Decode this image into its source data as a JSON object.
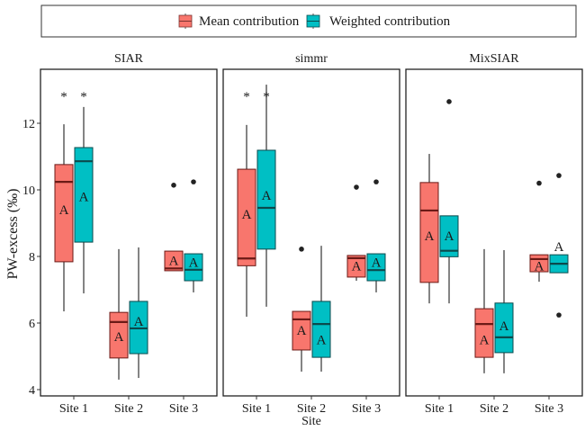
{
  "chart_data": {
    "type": "boxplot",
    "ylabel": "PW-excess (‰)",
    "xlabel": "Site",
    "ylim": [
      4,
      13.5
    ],
    "yticks": [
      4,
      6,
      8,
      10,
      12
    ],
    "ytick_labels": [
      "4",
      "6",
      "8",
      "10",
      "12"
    ],
    "categories": [
      "Site 1",
      "Site 2",
      "Site 3"
    ],
    "legend": {
      "position": "top",
      "entries": [
        {
          "name": "Mean contribution",
          "color": "#F8766D"
        },
        {
          "name": "Weighted contribution",
          "color": "#00BFC4"
        }
      ]
    },
    "colors": {
      "mean": "#F8766D",
      "weighted": "#00BFC4",
      "mean_median": "#6b1a16",
      "weighted_median": "#0b4a4c"
    },
    "panels": [
      {
        "title": "SIAR",
        "boxes": [
          {
            "site": "Site 1",
            "series": "Mean contribution",
            "whislo": 6.35,
            "q1": 7.84,
            "med": 10.24,
            "q3": 10.76,
            "whishi": 11.97,
            "outliers": [],
            "label": "A",
            "label_y": 9.4,
            "marker": "*"
          },
          {
            "site": "Site 1",
            "series": "Weighted contribution",
            "whislo": 6.89,
            "q1": 8.43,
            "med": 10.86,
            "q3": 11.27,
            "whishi": 12.49,
            "outliers": [],
            "label": "A",
            "label_y": 9.8,
            "marker": "*"
          },
          {
            "site": "Site 2",
            "series": "Mean contribution",
            "whislo": 4.3,
            "q1": 4.95,
            "med": 6.03,
            "q3": 6.32,
            "whishi": 8.22,
            "outliers": [],
            "label": "A",
            "label_y": 5.6,
            "marker": ""
          },
          {
            "site": "Site 2",
            "series": "Weighted contribution",
            "whislo": 4.35,
            "q1": 5.08,
            "med": 5.84,
            "q3": 6.65,
            "whishi": 8.27,
            "outliers": [],
            "label": "A",
            "label_y": 6.05,
            "marker": ""
          },
          {
            "site": "Site 3",
            "series": "Mean contribution",
            "whislo": 7.57,
            "q1": 7.57,
            "med": 7.64,
            "q3": 8.16,
            "whishi": 8.16,
            "outliers": [
              10.14
            ],
            "label": "A",
            "label_y": 7.88,
            "marker": ""
          },
          {
            "site": "Site 3",
            "series": "Weighted contribution",
            "whislo": 6.92,
            "q1": 7.27,
            "med": 7.6,
            "q3": 8.08,
            "whishi": 8.08,
            "outliers": [
              10.24
            ],
            "label": "A",
            "label_y": 7.82,
            "marker": ""
          }
        ]
      },
      {
        "title": "simmr",
        "boxes": [
          {
            "site": "Site 1",
            "series": "Mean contribution",
            "whislo": 6.19,
            "q1": 7.72,
            "med": 7.94,
            "q3": 10.62,
            "whishi": 11.95,
            "outliers": [],
            "label": "A",
            "label_y": 9.27,
            "marker": "*"
          },
          {
            "site": "Site 1",
            "series": "Weighted contribution",
            "whislo": 6.49,
            "q1": 8.22,
            "med": 9.46,
            "q3": 11.19,
            "whishi": 13.16,
            "outliers": [],
            "label": "A",
            "label_y": 9.84,
            "marker": "*"
          },
          {
            "site": "Site 2",
            "series": "Mean contribution",
            "whislo": 4.54,
            "q1": 5.19,
            "med": 6.11,
            "q3": 6.35,
            "whishi": 6.35,
            "outliers": [
              8.22
            ],
            "label": "A",
            "label_y": 5.78,
            "marker": ""
          },
          {
            "site": "Site 2",
            "series": "Weighted contribution",
            "whislo": 4.54,
            "q1": 4.97,
            "med": 5.97,
            "q3": 6.65,
            "whishi": 8.32,
            "outliers": [],
            "label": "A",
            "label_y": 5.5,
            "marker": ""
          },
          {
            "site": "Site 3",
            "series": "Mean contribution",
            "whislo": 7.27,
            "q1": 7.38,
            "med": 7.95,
            "q3": 8.03,
            "whishi": 8.03,
            "outliers": [
              10.08
            ],
            "label": "A",
            "label_y": 7.72,
            "marker": ""
          },
          {
            "site": "Site 3",
            "series": "Weighted contribution",
            "whislo": 6.92,
            "q1": 7.27,
            "med": 7.59,
            "q3": 8.08,
            "whishi": 8.08,
            "outliers": [
              10.24
            ],
            "label": "A",
            "label_y": 7.82,
            "marker": ""
          }
        ]
      },
      {
        "title": "MixSIAR",
        "boxes": [
          {
            "site": "Site 1",
            "series": "Mean contribution",
            "whislo": 6.59,
            "q1": 7.22,
            "med": 9.38,
            "q3": 10.22,
            "whishi": 11.08,
            "outliers": [],
            "label": "A",
            "label_y": 8.62,
            "marker": ""
          },
          {
            "site": "Site 1",
            "series": "Weighted contribution",
            "whislo": 6.59,
            "q1": 7.99,
            "med": 8.17,
            "q3": 9.22,
            "whishi": 9.22,
            "outliers": [
              12.65
            ],
            "label": "A",
            "label_y": 8.62,
            "marker": ""
          },
          {
            "site": "Site 2",
            "series": "Mean contribution",
            "whislo": 4.49,
            "q1": 4.97,
            "med": 5.97,
            "q3": 6.43,
            "whishi": 8.22,
            "outliers": [],
            "label": "A",
            "label_y": 5.5,
            "marker": ""
          },
          {
            "site": "Site 2",
            "series": "Weighted contribution",
            "whislo": 4.49,
            "q1": 5.11,
            "med": 5.57,
            "q3": 6.6,
            "whishi": 8.19,
            "outliers": [],
            "label": "A",
            "label_y": 5.92,
            "marker": ""
          },
          {
            "site": "Site 3",
            "series": "Mean contribution",
            "whislo": 7.24,
            "q1": 7.54,
            "med": 7.92,
            "q3": 8.05,
            "whishi": 8.05,
            "outliers": [
              10.2
            ],
            "label": "A",
            "label_y": 7.72,
            "marker": ""
          },
          {
            "site": "Site 3",
            "series": "Weighted contribution",
            "whislo": 7.51,
            "q1": 7.51,
            "med": 7.78,
            "q3": 8.05,
            "whishi": 8.05,
            "outliers": [
              10.43,
              6.24
            ],
            "label": "A",
            "label_y": 8.3,
            "marker": ""
          }
        ]
      }
    ]
  }
}
